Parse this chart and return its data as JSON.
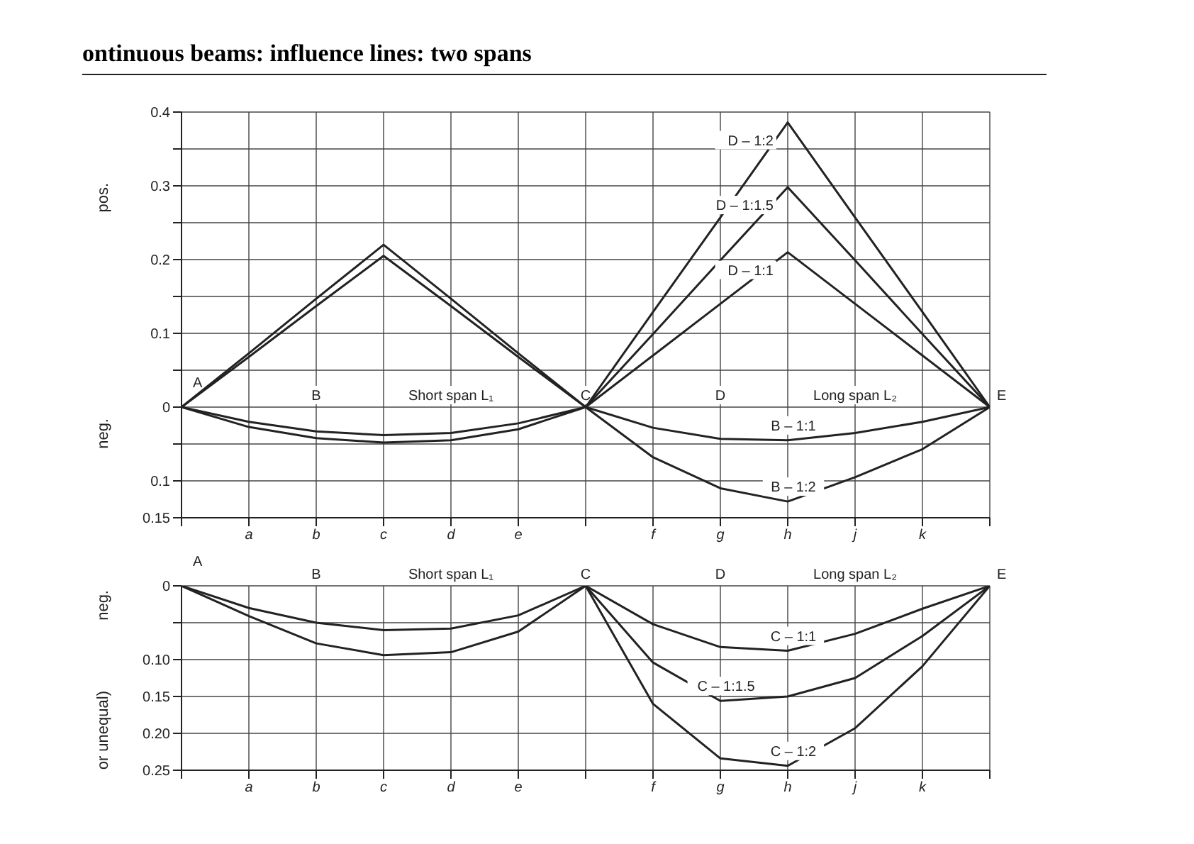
{
  "chart_data": [
    {
      "type": "line",
      "title": "ontinuous beams: influence lines: two spans",
      "ylabel": "pos.",
      "categories": [
        null,
        "a",
        "b",
        "c",
        "d",
        "e",
        null,
        "f",
        "g",
        "h",
        "j",
        "k",
        null
      ],
      "ylim": [
        -0.15,
        0.4
      ],
      "yticks": [
        {
          "value": -0.15,
          "label": "0.15"
        },
        {
          "value": -0.1,
          "label": "0.1"
        },
        {
          "value": -0.05,
          "label": null
        },
        0,
        {
          "value": 0.05,
          "label": null
        },
        0.1,
        {
          "value": 0.15,
          "label": null
        },
        0.2,
        {
          "value": 0.25,
          "label": null
        },
        0.3,
        {
          "value": 0.35,
          "label": null
        },
        0.4
      ],
      "grid": true,
      "marker": "none",
      "line_style": "solid",
      "series": [
        {
          "name": "B – 1:2",
          "color": "#222222",
          "values": [
            0,
            0.073,
            0.147,
            0.22,
            0.147,
            0.073,
            0,
            -0.068,
            -0.11,
            -0.128,
            -0.095,
            -0.057,
            0
          ]
        },
        {
          "name": "B – 1:1",
          "color": "#222222",
          "values": [
            0,
            0.068,
            0.137,
            0.205,
            0.137,
            0.068,
            0,
            -0.028,
            -0.043,
            -0.045,
            -0.035,
            -0.02,
            0
          ]
        },
        {
          "name": "D – 1:2",
          "color": "#222222",
          "values": [
            0,
            -0.02,
            -0.033,
            -0.038,
            -0.035,
            -0.022,
            0,
            0.129,
            0.257,
            0.386,
            0.257,
            0.129,
            0
          ]
        },
        {
          "name": "D – 1:1.5",
          "color": "#222222",
          "values": [
            null,
            null,
            null,
            null,
            null,
            null,
            0,
            0.099,
            0.199,
            0.298,
            0.199,
            0.099,
            0
          ]
        },
        {
          "name": "D – 1:1",
          "color": "#222222",
          "values": [
            0,
            -0.027,
            -0.042,
            -0.048,
            -0.045,
            -0.03,
            0,
            0.07,
            0.14,
            0.21,
            0.14,
            0.07,
            0
          ]
        }
      ],
      "annotations": [
        "neg.",
        "A",
        "B",
        "Short span L₁",
        "C",
        "D",
        "Long span L₂",
        "E"
      ]
    },
    {
      "type": "line",
      "ylabel": "neg.",
      "categories": [
        null,
        "a",
        "b",
        "c",
        "d",
        "e",
        null,
        "f",
        "g",
        "h",
        "j",
        "k",
        null
      ],
      "ylim": [
        -0.25,
        0
      ],
      "yticks": [
        {
          "value": -0.25,
          "label": "0.25"
        },
        {
          "value": -0.2,
          "label": "0.20"
        },
        {
          "value": -0.15,
          "label": "0.15"
        },
        {
          "value": -0.1,
          "label": "0.10"
        },
        {
          "value": -0.05,
          "label": null
        },
        0
      ],
      "grid": true,
      "marker": "none",
      "line_style": "solid",
      "series": [
        {
          "name": "C – 1:2",
          "color": "#222222",
          "values": [
            0,
            -0.03,
            -0.05,
            -0.06,
            -0.058,
            -0.04,
            0,
            -0.16,
            -0.234,
            -0.244,
            -0.193,
            -0.109,
            0
          ]
        },
        {
          "name": "C – 1:1.5",
          "color": "#222222",
          "values": [
            null,
            null,
            null,
            null,
            null,
            null,
            0,
            -0.104,
            -0.156,
            -0.15,
            -0.125,
            -0.068,
            0
          ]
        },
        {
          "name": "C – 1:1",
          "color": "#222222",
          "values": [
            0,
            -0.041,
            -0.078,
            -0.094,
            -0.09,
            -0.062,
            0,
            -0.052,
            -0.083,
            -0.088,
            -0.065,
            -0.031,
            0
          ]
        }
      ],
      "annotations": [
        "or unequal)",
        "A",
        "B",
        "Short span L₁",
        "C",
        "D",
        "Long span L₂",
        "E"
      ]
    }
  ]
}
